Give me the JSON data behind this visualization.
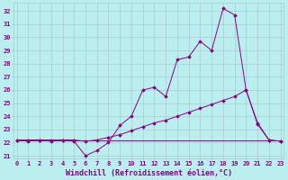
{
  "xlabel": "Windchill (Refroidissement éolien,°C)",
  "x_values": [
    0,
    1,
    2,
    3,
    4,
    5,
    6,
    7,
    8,
    9,
    10,
    11,
    12,
    13,
    14,
    15,
    16,
    17,
    18,
    19,
    20,
    21,
    22,
    23
  ],
  "line1_jagged": [
    22.2,
    22.1,
    22.2,
    22.1,
    22.2,
    22.1,
    21.0,
    21.4,
    22.0,
    23.3,
    24.0,
    26.0,
    26.2,
    25.5,
    28.3,
    28.5,
    29.7,
    29.0,
    32.2,
    31.7,
    26.0,
    23.4,
    22.2,
    22.1
  ],
  "line2_flat": [
    22.2,
    22.2,
    22.2,
    22.2,
    22.2,
    22.2,
    22.2,
    22.2,
    22.2,
    22.2,
    22.2,
    22.2,
    22.2,
    22.2,
    22.2,
    22.2,
    22.2,
    22.2,
    22.2,
    22.2,
    22.2,
    22.2,
    22.2,
    22.2
  ],
  "line3_gradual": [
    22.2,
    22.2,
    22.2,
    22.2,
    22.2,
    22.2,
    22.1,
    22.2,
    22.4,
    22.6,
    22.9,
    23.2,
    23.5,
    23.7,
    24.0,
    24.3,
    24.6,
    24.9,
    25.2,
    25.5,
    26.0,
    23.5,
    22.2,
    22.1
  ],
  "line_color": "#880088",
  "bg_color": "#bbeeee",
  "grid_color": "#aacccc",
  "ylim_bottom": 20.8,
  "ylim_top": 32.6,
  "yticks": [
    21,
    22,
    23,
    24,
    25,
    26,
    27,
    28,
    29,
    30,
    31,
    32
  ],
  "xlim_left": -0.3,
  "xlim_right": 23.3,
  "tick_fontsize": 5.0,
  "label_fontsize": 6.0
}
